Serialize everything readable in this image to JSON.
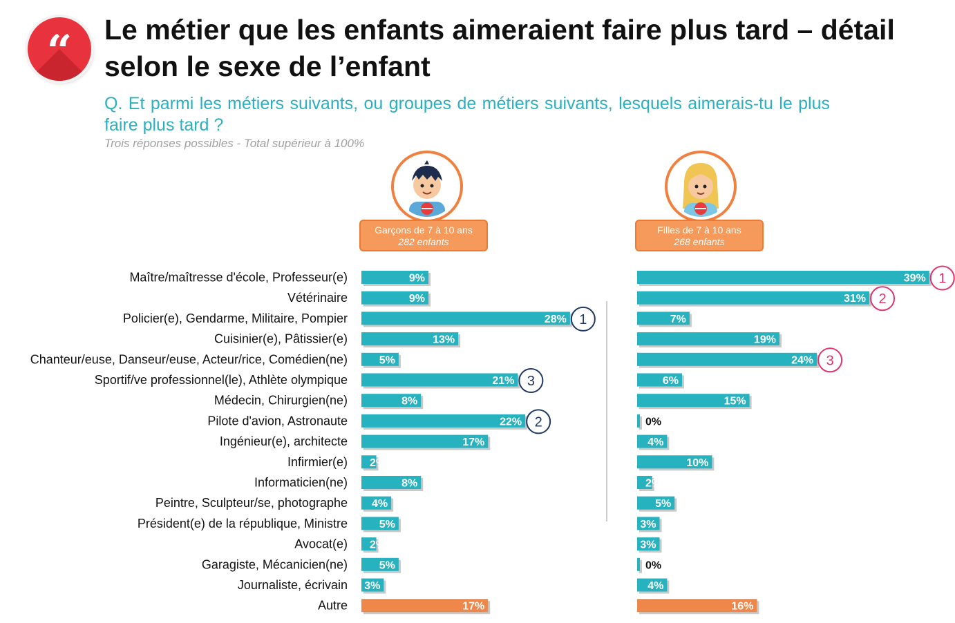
{
  "title": "Le métier que les enfants aimeraient faire plus tard – détail selon le sexe de l’enfant",
  "question": "Q. Et parmi les métiers suivants, ou groupes de métiers suivants, lesquels aimerais-tu le plus faire plus tard ?",
  "note": "Trois réponses possibles - Total supérieur à 100%",
  "icons": {
    "badge": "quote-icon",
    "boy": "boy-avatar-icon",
    "girl": "girl-avatar-icon"
  },
  "groups": {
    "boys": {
      "label": "Garçons de 7 à 10 ans",
      "sub": "282 enfants"
    },
    "girls": {
      "label": "Filles de 7 à 10 ans",
      "sub": "268 enfants"
    }
  },
  "colors": {
    "bar": "#27b2bf",
    "other_bar": "#f0874a",
    "boys_rank": "#1f3864",
    "girls_rank": "#e0336b",
    "title_accent": "#e8333e"
  },
  "chart_data": {
    "type": "bar",
    "orientation": "horizontal",
    "categories": [
      "Maître/maîtresse d'école, Professeur(e)",
      "Vétérinaire",
      "Policier(e), Gendarme, Militaire, Pompier",
      "Cuisinier(e), Pâtissier(e)",
      "Chanteur/euse, Danseur/euse, Acteur/rice, Comédien(ne)",
      "Sportif/ve professionnel(le), Athlète olympique",
      "Médecin, Chirurgien(ne)",
      "Pilote d'avion, Astronaute",
      "Ingénieur(e), architecte",
      "Infirmier(e)",
      "Informaticien(ne)",
      "Peintre, Sculpteur/se, photographe",
      "Président(e) de la république, Ministre",
      "Avocat(e)",
      "Garagiste, Mécanicien(ne)",
      "Journaliste, écrivain",
      "Autre"
    ],
    "series": [
      {
        "name": "Garçons de 7 à 10 ans",
        "values": [
          9,
          9,
          28,
          13,
          5,
          21,
          8,
          22,
          17,
          2,
          8,
          4,
          5,
          2,
          5,
          3,
          17
        ],
        "labels": [
          "9%",
          "9%",
          "28%",
          "13%",
          "5%",
          "21%",
          "8%",
          "22%",
          "17%",
          "2%",
          "8%",
          "4%",
          "5%",
          "2%",
          "5%",
          "3%",
          "17%"
        ],
        "ranks": [
          null,
          null,
          "1",
          null,
          null,
          "3",
          null,
          "2",
          null,
          null,
          null,
          null,
          null,
          null,
          null,
          null,
          null
        ]
      },
      {
        "name": "Filles de 7 à 10 ans",
        "values": [
          39,
          31,
          7,
          19,
          24,
          6,
          15,
          0,
          4,
          10,
          2,
          5,
          3,
          3,
          0,
          4,
          16
        ],
        "labels": [
          "39%",
          "31%",
          "7%",
          "19%",
          "24%",
          "6%",
          "15%",
          "0%",
          "4%",
          "10%",
          "2%",
          "5%",
          "3%",
          "3%",
          "0%",
          "4%",
          "16%"
        ],
        "ranks": [
          "1",
          "2",
          null,
          null,
          "3",
          null,
          null,
          null,
          null,
          null,
          null,
          null,
          null,
          null,
          null,
          null,
          null
        ]
      }
    ],
    "unit": "%",
    "xlim": [
      0,
      39
    ]
  }
}
